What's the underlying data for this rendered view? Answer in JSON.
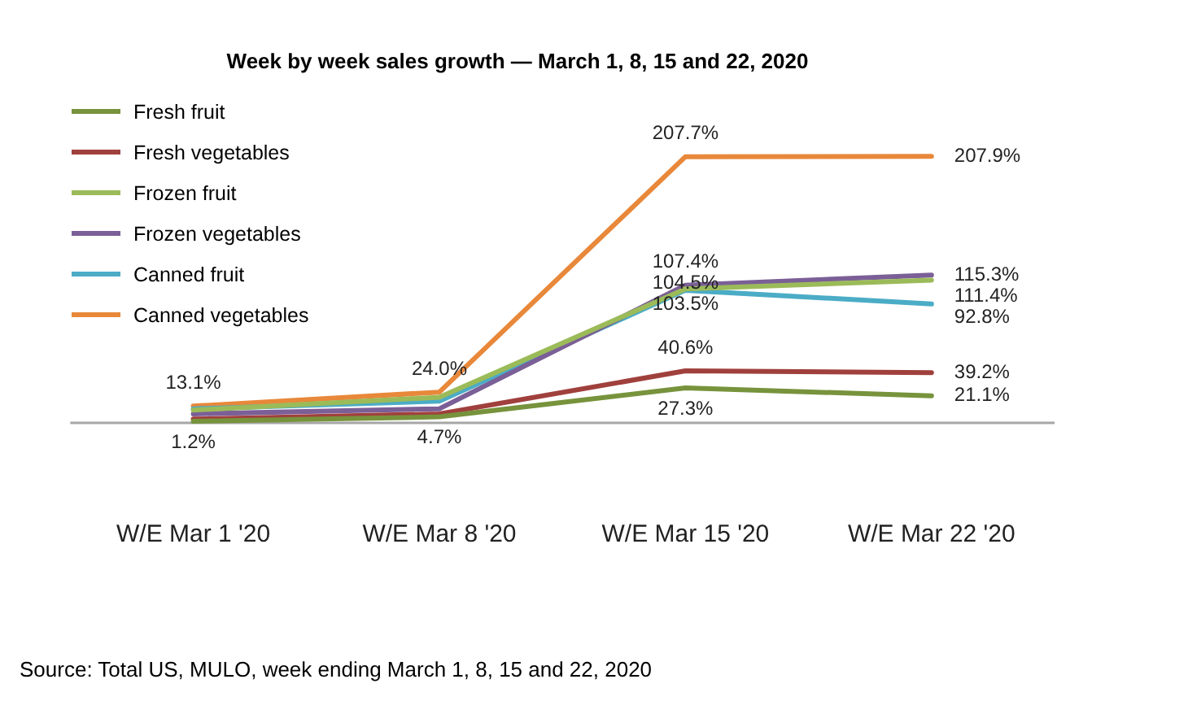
{
  "chart_data": {
    "type": "line",
    "title": "Week by week sales growth — March 1, 8, 15 and 22, 2020",
    "categories": [
      "W/E Mar 1 '20",
      "W/E Mar 8 '20",
      "W/E Mar 15 '20",
      "W/E Mar 22 '20"
    ],
    "series": [
      {
        "name": "Fresh fruit",
        "color": "#77933c",
        "values": [
          1.2,
          4.7,
          27.3,
          21.1
        ],
        "value_labels": [
          "1.2%",
          "4.7%",
          "27.3%",
          "21.1%"
        ]
      },
      {
        "name": "Fresh vegetables",
        "color": "#a0403c",
        "values": [
          3,
          7,
          40.6,
          39.2
        ],
        "value_labels": [
          null,
          null,
          "40.6%",
          "39.2%"
        ]
      },
      {
        "name": "Frozen fruit",
        "color": "#9bbb59",
        "values": [
          10,
          20,
          104.5,
          111.4
        ],
        "value_labels": [
          null,
          null,
          "104.5%",
          "111.4%"
        ]
      },
      {
        "name": "Frozen vegetables",
        "color": "#7b5f97",
        "values": [
          7,
          11,
          107.4,
          115.3
        ],
        "value_labels": [
          null,
          null,
          "107.4%",
          "115.3%"
        ]
      },
      {
        "name": "Canned fruit",
        "color": "#4bacc6",
        "values": [
          11,
          17,
          103.5,
          92.8
        ],
        "value_labels": [
          null,
          null,
          "103.5%",
          "92.8%"
        ]
      },
      {
        "name": "Canned vegetables",
        "color": "#e8883a",
        "values": [
          13.1,
          24.0,
          207.7,
          207.9
        ],
        "value_labels": [
          "13.1%",
          "24.0%",
          "207.7%",
          "207.9%"
        ]
      }
    ],
    "ref_lines": [
      {
        "axis": "y",
        "value": 0,
        "color": "#a6a6a6"
      }
    ],
    "legend": "top left",
    "grid": false,
    "marker": "none",
    "line_style": "solid",
    "annotations": [
      "Source: Total US, MULO, week ending March 1, 8, 15 and 22, 2020"
    ]
  }
}
